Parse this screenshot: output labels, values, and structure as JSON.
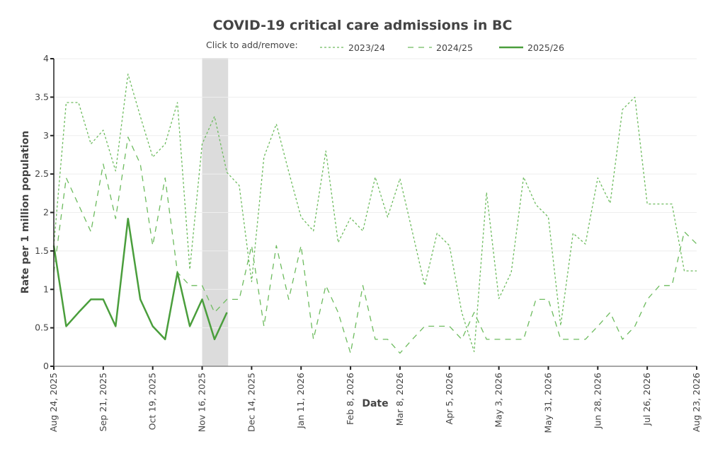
{
  "chart_data": {
    "type": "line",
    "title": "COVID-19 critical care admissions in BC",
    "legend_prompt": "Click to add/remove:",
    "legend_position": "top",
    "xlabel": "Date",
    "ylabel": "Rate per 1 million population",
    "ylim": [
      0,
      4
    ],
    "yticks": [
      "0",
      "0.5",
      "1",
      "1.5",
      "2",
      "2.5",
      "3",
      "3.5",
      "4"
    ],
    "ytick_values": [
      0,
      0.5,
      1,
      1.5,
      2,
      2.5,
      3,
      3.5,
      4
    ],
    "x_unit": "week index from Aug 24, 2025",
    "xlim": [
      0,
      52
    ],
    "xtick_positions": [
      0,
      4,
      8,
      12,
      16,
      20,
      24,
      28,
      32,
      36,
      40,
      44,
      48,
      52
    ],
    "xticks": [
      "Aug 24, 2025",
      "Sep 21, 2025",
      "Oct 19, 2025",
      "Nov 16, 2025",
      "Dec 14, 2025",
      "Jan 11, 2026",
      "Feb 8, 2026",
      "Mar 8, 2026",
      "Apr 5, 2026",
      "May 3, 2026",
      "May 31, 2026",
      "Jun 28, 2026",
      "Jul 26, 2026",
      "Aug 23, 2026"
    ],
    "grid": true,
    "shaded_region": {
      "x_start": 12,
      "x_end": 14.1,
      "color": "#dcdcdc"
    },
    "series": [
      {
        "name": "2023/24",
        "style": "dotted",
        "color": "#6dbb5e",
        "values": [
          1.57,
          3.43,
          3.43,
          2.89,
          3.07,
          2.54,
          3.8,
          3.25,
          2.72,
          2.89,
          3.43,
          1.26,
          2.89,
          3.25,
          2.52,
          2.35,
          1.1,
          2.72,
          3.15,
          2.53,
          1.94,
          1.76,
          2.8,
          1.61,
          1.93,
          1.76,
          2.46,
          1.94,
          2.44,
          1.75,
          1.05,
          1.73,
          1.57,
          0.7,
          0.19,
          2.26,
          0.88,
          1.22,
          2.46,
          2.1,
          1.94,
          0.53,
          1.73,
          1.59,
          2.45,
          2.12,
          3.34,
          3.5,
          2.11,
          2.11,
          2.11,
          1.24,
          1.24
        ]
      },
      {
        "name": "2024/25",
        "style": "dashed",
        "color": "#6dbb5e",
        "values": [
          1.22,
          2.45,
          2.1,
          1.75,
          2.63,
          1.92,
          2.98,
          2.63,
          1.57,
          2.45,
          1.22,
          1.05,
          1.05,
          0.7,
          0.87,
          0.87,
          1.57,
          0.52,
          1.57,
          0.87,
          1.57,
          0.35,
          1.05,
          0.7,
          0.17,
          1.05,
          0.35,
          0.35,
          0.17,
          0.35,
          0.52,
          0.52,
          0.52,
          0.35,
          0.7,
          0.35,
          0.35,
          0.35,
          0.35,
          0.87,
          0.87,
          0.35,
          0.35,
          0.35,
          0.52,
          0.7,
          0.35,
          0.52,
          0.87,
          1.05,
          1.05,
          1.75,
          1.59
        ]
      },
      {
        "name": "2025/26",
        "style": "solid",
        "color": "#4a9e3c",
        "values": [
          1.57,
          0.52,
          0.7,
          0.87,
          0.87,
          0.52,
          1.92,
          0.87,
          0.52,
          0.35,
          1.22,
          0.52,
          0.87,
          0.35,
          0.7
        ]
      }
    ]
  }
}
